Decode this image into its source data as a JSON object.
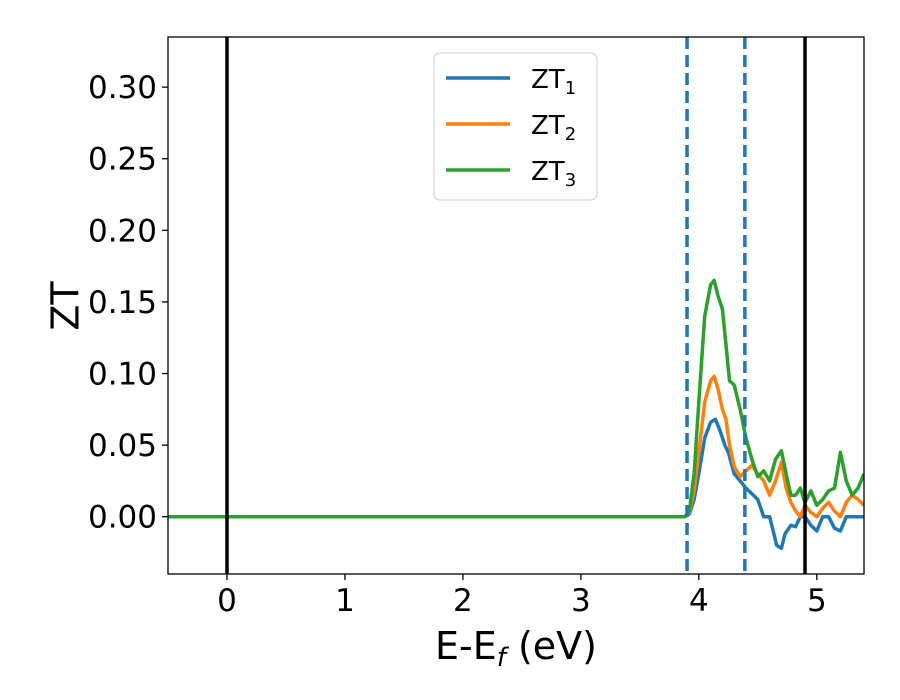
{
  "chart_data": {
    "type": "line",
    "xlabel": "E-E",
    "xlabel_sub": "f",
    "xlabel_unit": " (eV)",
    "ylabel": "ZT",
    "xlim": [
      -0.5,
      5.4
    ],
    "ylim": [
      -0.04,
      0.335
    ],
    "xticks": [
      0,
      1,
      2,
      3,
      4,
      5
    ],
    "xtick_labels": [
      "0",
      "1",
      "2",
      "3",
      "4",
      "5"
    ],
    "yticks": [
      0.0,
      0.05,
      0.1,
      0.15,
      0.2,
      0.25,
      0.3
    ],
    "ytick_labels": [
      "0.00",
      "0.05",
      "0.10",
      "0.15",
      "0.20",
      "0.25",
      "0.30"
    ],
    "grid": false,
    "legend_position": "top-center",
    "vlines": [
      {
        "x": 0.0,
        "style": "solid",
        "color": "#000000"
      },
      {
        "x": 4.9,
        "style": "solid",
        "color": "#000000"
      },
      {
        "x": 3.9,
        "style": "dashed",
        "color": "#1f77b4"
      },
      {
        "x": 4.39,
        "style": "dashed",
        "color": "#1f77b4"
      }
    ],
    "series": [
      {
        "name": "ZT",
        "subscript": "1",
        "color": "#1f77b4",
        "x": [
          -0.5,
          3.8,
          3.88,
          3.92,
          3.96,
          4.0,
          4.05,
          4.1,
          4.14,
          4.18,
          4.22,
          4.25,
          4.3,
          4.35,
          4.4,
          4.45,
          4.5,
          4.55,
          4.6,
          4.63,
          4.66,
          4.7,
          4.73,
          4.78,
          4.82,
          4.86,
          4.9,
          4.95,
          5.0,
          5.05,
          5.1,
          5.15,
          5.2,
          5.25,
          5.3,
          5.35,
          5.4
        ],
        "y": [
          0.0,
          0.0,
          0.0,
          0.002,
          0.012,
          0.03,
          0.055,
          0.066,
          0.068,
          0.06,
          0.05,
          0.045,
          0.03,
          0.025,
          0.02,
          0.016,
          0.012,
          0.0,
          0.0,
          -0.01,
          -0.02,
          -0.022,
          -0.012,
          -0.006,
          -0.007,
          0.0,
          0.0,
          -0.006,
          -0.01,
          0.0,
          0.0,
          -0.008,
          -0.01,
          0.0,
          0.0,
          0.0,
          0.0
        ]
      },
      {
        "name": "ZT",
        "subscript": "2",
        "color": "#ff7f0e",
        "x": [
          -0.5,
          3.8,
          3.88,
          3.92,
          3.96,
          4.0,
          4.05,
          4.1,
          4.13,
          4.16,
          4.2,
          4.23,
          4.26,
          4.3,
          4.35,
          4.4,
          4.45,
          4.5,
          4.55,
          4.6,
          4.65,
          4.7,
          4.74,
          4.78,
          4.82,
          4.86,
          4.9,
          4.95,
          5.0,
          5.05,
          5.1,
          5.15,
          5.2,
          5.25,
          5.3,
          5.35,
          5.4
        ],
        "y": [
          0.0,
          0.0,
          0.0,
          0.003,
          0.018,
          0.045,
          0.08,
          0.095,
          0.098,
          0.09,
          0.075,
          0.068,
          0.05,
          0.035,
          0.028,
          0.032,
          0.036,
          0.03,
          0.025,
          0.015,
          0.025,
          0.038,
          0.02,
          0.01,
          0.004,
          0.0,
          0.008,
          0.003,
          0.0,
          0.006,
          0.01,
          0.004,
          0.0,
          0.01,
          0.015,
          0.012,
          0.008
        ]
      },
      {
        "name": "ZT",
        "subscript": "3",
        "color": "#2ca02c",
        "x": [
          -0.5,
          3.8,
          3.88,
          3.92,
          3.96,
          4.0,
          4.05,
          4.1,
          4.13,
          4.16,
          4.2,
          4.23,
          4.26,
          4.3,
          4.35,
          4.4,
          4.45,
          4.5,
          4.55,
          4.6,
          4.65,
          4.7,
          4.74,
          4.78,
          4.82,
          4.86,
          4.9,
          4.95,
          5.0,
          5.05,
          5.1,
          5.15,
          5.2,
          5.25,
          5.3,
          5.35,
          5.4
        ],
        "y": [
          0.0,
          0.0,
          0.0,
          0.004,
          0.03,
          0.08,
          0.14,
          0.162,
          0.165,
          0.155,
          0.145,
          0.12,
          0.095,
          0.092,
          0.075,
          0.055,
          0.04,
          0.028,
          0.032,
          0.025,
          0.04,
          0.046,
          0.03,
          0.015,
          0.015,
          0.02,
          0.01,
          0.018,
          0.008,
          0.012,
          0.018,
          0.02,
          0.045,
          0.025,
          0.015,
          0.02,
          0.03
        ]
      }
    ]
  }
}
